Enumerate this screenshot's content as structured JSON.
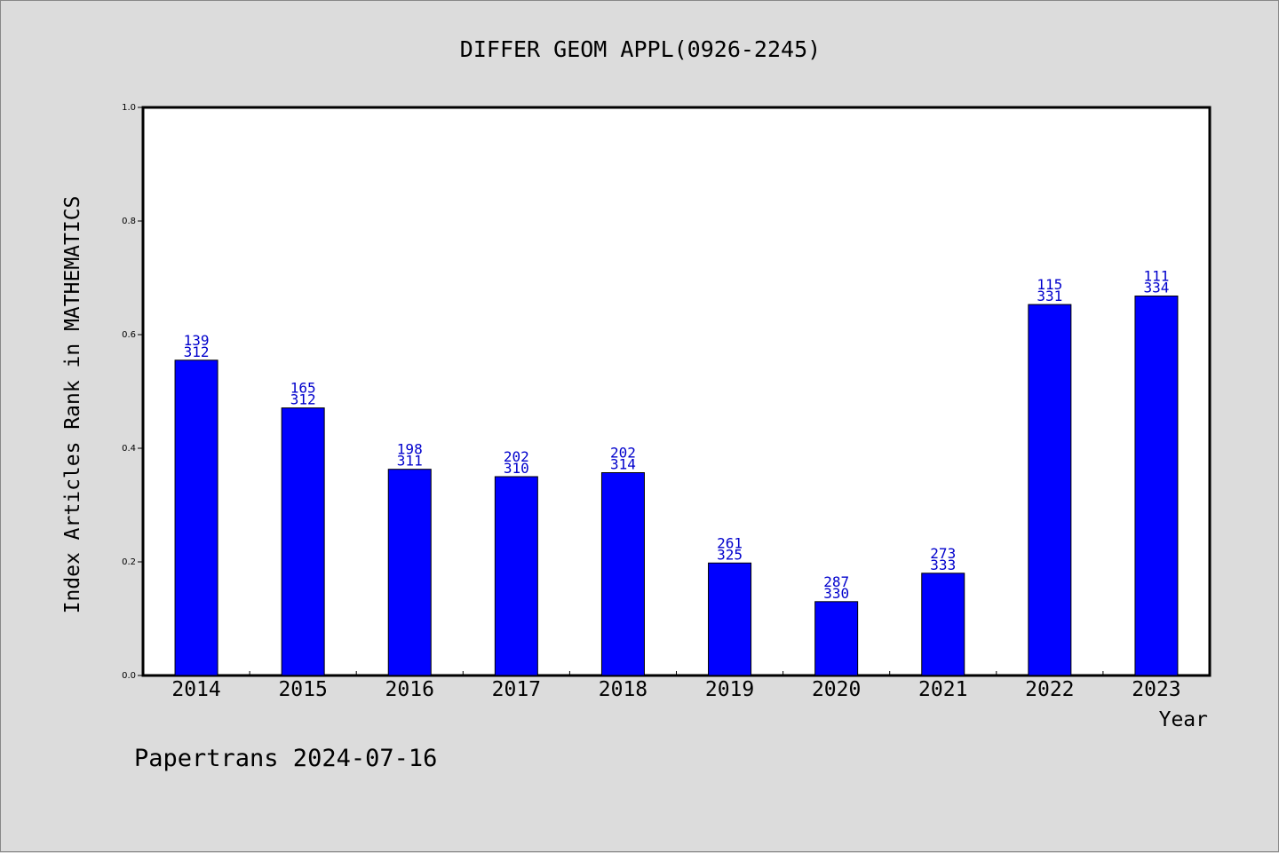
{
  "chart_data": {
    "type": "bar",
    "title": "DIFFER GEOM APPL(0926-2245)",
    "xlabel": "Year",
    "ylabel": "Index Articles Rank in MATHEMATICS",
    "ylim": [
      0,
      1.0
    ],
    "yticks": [
      "0.0",
      "0.2",
      "0.4",
      "0.6",
      "0.8",
      "1.0"
    ],
    "categories": [
      "2014",
      "2015",
      "2016",
      "2017",
      "2018",
      "2019",
      "2020",
      "2021",
      "2022",
      "2023"
    ],
    "values": [
      0.555,
      0.471,
      0.363,
      0.35,
      0.357,
      0.198,
      0.13,
      0.18,
      0.653,
      0.668
    ],
    "labels_top": [
      "139",
      "165",
      "198",
      "202",
      "202",
      "261",
      "287",
      "273",
      "115",
      "111"
    ],
    "labels_bottom": [
      "312",
      "312",
      "311",
      "310",
      "314",
      "325",
      "330",
      "333",
      "331",
      "334"
    ],
    "bar_color": "#0000ff",
    "label_color": "#0000cc",
    "grid": false
  },
  "footer": "Papertrans 2024-07-16"
}
